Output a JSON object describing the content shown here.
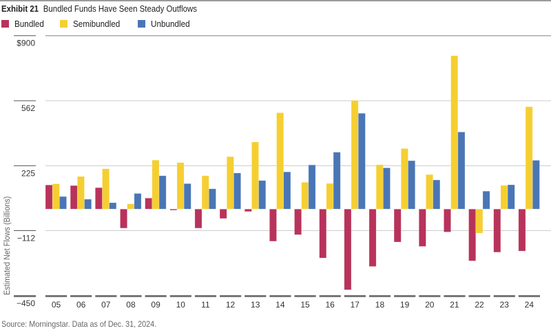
{
  "header": {
    "exhibit": "Exhibit 21",
    "title": "Bundled Funds Have Seen Steady Outflows"
  },
  "source": "Source: Morningstar. Data as of Dec. 31, 2024.",
  "chart_data": {
    "type": "bar",
    "title": "Bundled Funds Have Seen Steady Outflows",
    "xlabel": "",
    "ylabel": "Estimated Net Flows (Billions)",
    "ylim": [
      -450,
      900
    ],
    "yticks": [
      900,
      562,
      225,
      -112,
      -450
    ],
    "ytick_labels": [
      "$900",
      "562",
      "225",
      "−112",
      "−450"
    ],
    "grid": true,
    "legend": "top-left",
    "categories": [
      "05",
      "06",
      "07",
      "08",
      "09",
      "10",
      "11",
      "12",
      "13",
      "14",
      "15",
      "16",
      "17",
      "18",
      "19",
      "20",
      "21",
      "22",
      "23",
      "24"
    ],
    "series": [
      {
        "name": "Bundled",
        "color": "#b8335b",
        "values": [
          125,
          122,
          111,
          -99,
          57,
          -6,
          -99,
          -49,
          -13,
          -167,
          -133,
          -254,
          -419,
          -298,
          -171,
          -194,
          -119,
          -269,
          -224,
          -218
        ]
      },
      {
        "name": "Semibundled",
        "color": "#f5cf32",
        "values": [
          131,
          169,
          209,
          27,
          254,
          241,
          173,
          272,
          348,
          500,
          139,
          133,
          564,
          230,
          314,
          179,
          796,
          -125,
          123,
          531
        ]
      },
      {
        "name": "Unbundled",
        "color": "#4a76b6",
        "values": [
          65,
          51,
          33,
          81,
          173,
          132,
          105,
          187,
          148,
          193,
          229,
          295,
          497,
          214,
          251,
          151,
          400,
          93,
          126,
          253
        ]
      }
    ]
  }
}
